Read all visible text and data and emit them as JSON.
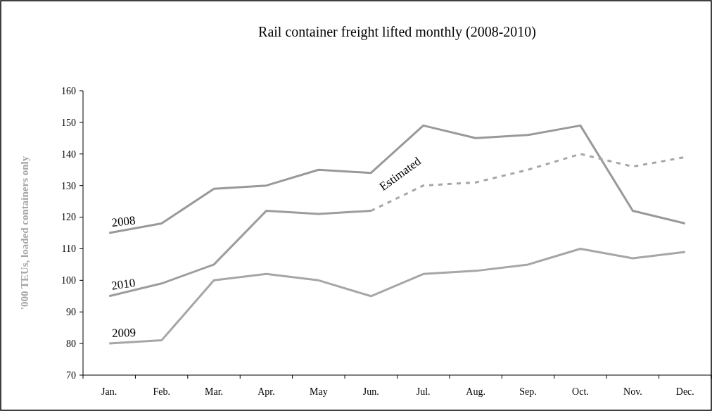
{
  "chart_data": {
    "type": "line",
    "title": "Rail container freight lifted monthly (2008-2010)",
    "ylabel": "'000 TEUs, loaded containers only",
    "categories": [
      "Jan.",
      "Feb.",
      "Mar.",
      "Apr.",
      "May",
      "Jun.",
      "Jul.",
      "Aug.",
      "Sep.",
      "Oct.",
      "Nov.",
      "Dec."
    ],
    "ylim": [
      70,
      160
    ],
    "yticks": [
      70,
      80,
      90,
      100,
      110,
      120,
      130,
      140,
      150,
      160
    ],
    "series": [
      {
        "name": "2008",
        "color": "#999999",
        "line_style": "solid",
        "values": [
          115,
          118,
          129,
          130,
          135,
          134,
          149,
          145,
          146,
          149,
          122,
          118
        ]
      },
      {
        "name": "2010",
        "color": "#9d9d9d",
        "line_style": "solid",
        "values": [
          95,
          99,
          105,
          122,
          121,
          122,
          null,
          null,
          null,
          null,
          null,
          null
        ]
      },
      {
        "name": "2009",
        "color": "#a6a6a6",
        "line_style": "solid",
        "values": [
          80,
          81,
          100,
          102,
          100,
          95,
          102,
          103,
          105,
          110,
          107,
          109
        ]
      },
      {
        "name": "Estimated",
        "color": "#a6a6a6",
        "line_style": "dashed",
        "values": [
          null,
          null,
          null,
          null,
          null,
          122,
          130,
          131,
          135,
          140,
          136,
          139
        ]
      }
    ]
  }
}
